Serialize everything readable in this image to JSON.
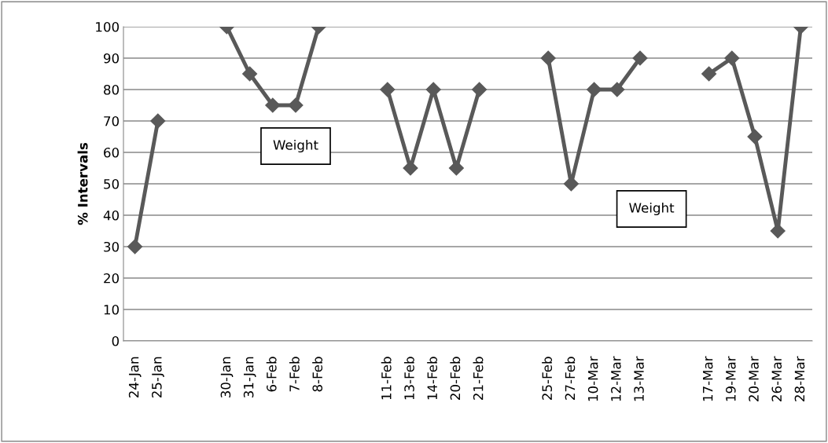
{
  "chart_data": {
    "type": "line",
    "ylabel": "% Intervals",
    "categories": [
      "24-Jan",
      "25-Jan",
      null,
      null,
      "30-Jan",
      "31-Jan",
      "6-Feb",
      "7-Feb",
      "8-Feb",
      null,
      null,
      "11-Feb",
      "13-Feb",
      "14-Feb",
      "20-Feb",
      "21-Feb",
      null,
      null,
      "25-Feb",
      "27-Feb",
      "10-Mar",
      "12-Mar",
      "13-Mar",
      null,
      null,
      "17-Mar",
      "19-Mar",
      "20-Mar",
      "26-Mar",
      "28-Mar"
    ],
    "series": [
      {
        "color": "#595959",
        "values": [
          30,
          70,
          null,
          null,
          100,
          85,
          75,
          75,
          100,
          null,
          null,
          80,
          55,
          80,
          55,
          80,
          null,
          null,
          90,
          50,
          80,
          80,
          90,
          null,
          null,
          85,
          90,
          65,
          35,
          100
        ]
      }
    ],
    "ylim": [
      0,
      100
    ],
    "yticks": [
      0,
      10,
      20,
      30,
      40,
      50,
      60,
      70,
      80,
      90,
      100
    ],
    "grid": "y",
    "marker": "diamond",
    "line_style": "solid",
    "annotations": [
      "Weight",
      "Weight"
    ]
  }
}
